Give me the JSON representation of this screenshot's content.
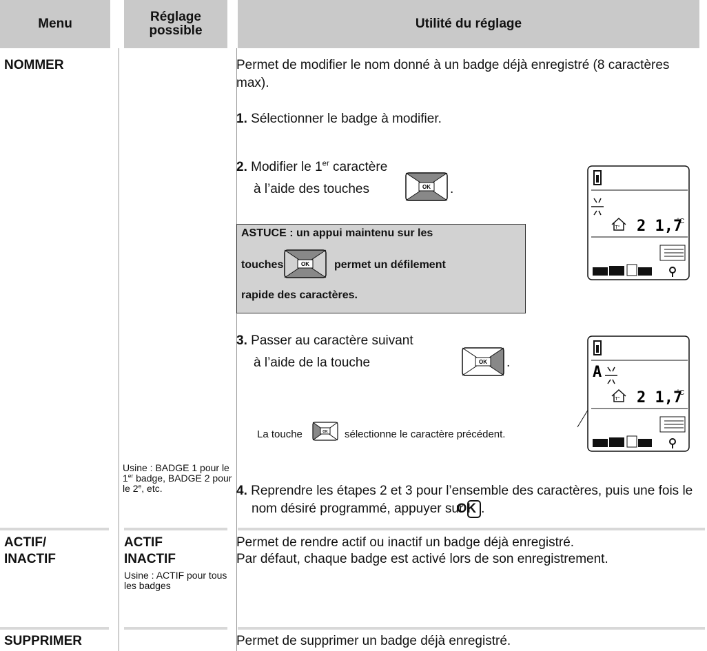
{
  "header": {
    "menu": "Menu",
    "reglage": "Réglage possible",
    "utilite": "Utilité du réglage"
  },
  "rows": [
    {
      "menu": "NOMMER",
      "reglage": {
        "pre": "Usine : BADGE 1 pour le 1",
        "sup1": "er",
        "mid": " badge, BADGE 2 pour le 2",
        "sup2": "e",
        "post": ", etc."
      },
      "intro": "Permet de modifier le nom donné à un badge déjà enregistré (8 caractères max).",
      "step1": {
        "num": "1.",
        "text": "Sélectionner le badge à modifier."
      },
      "step2": {
        "num": "2.",
        "pre": "Modifier le 1",
        "sup": "er",
        "post": " caractère",
        "line2": "à l’aide des touches",
        "end": "."
      },
      "tip": {
        "line1": "ASTUCE : un appui maintenu sur les",
        "line2a": "touches",
        "line2b": "permet un défilement",
        "line3": "rapide des caractères."
      },
      "step3": {
        "num": "3.",
        "text": "Passer au caractère suivant",
        "line2": "à l’aide de la touche",
        "end": ".",
        "note_a": "La touche",
        "note_b": "sélectionne le caractère précédent."
      },
      "step4": {
        "num": "4.",
        "text": "Reprendre les étapes 2 et 3 pour l’ensemble des caractères, puis une fois le nom désiré programmé, appuyer sur",
        "key": "OK",
        "end": "."
      },
      "lcd": {
        "temp": "2 1,7",
        "unit": "°C",
        "tlabel": "T°",
        "char": "A"
      }
    },
    {
      "menu_a": "ACTIF/",
      "menu_b": "INACTIF",
      "opt_a": "ACTIF",
      "opt_b": "INACTIF",
      "usine": "Usine : ACTIF pour tous les badges",
      "line1": "Permet de rendre actif ou inactif un badge déjà enregistré.",
      "line2": "Par défaut, chaque badge est activé lors de son enregistrement."
    },
    {
      "menu": "SUPPRIMER",
      "text": "Permet de supprimer un badge déjà enregistré."
    }
  ]
}
